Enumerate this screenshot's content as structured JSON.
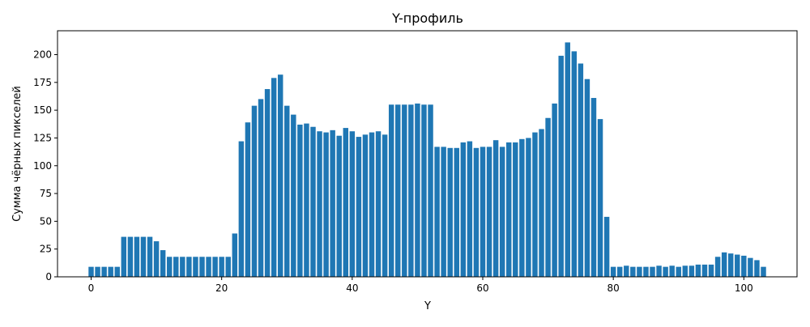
{
  "chart_data": {
    "type": "bar",
    "title": "Y-профиль",
    "xlabel": "Y",
    "ylabel": "Сумма чёрных пикселей",
    "xlim": [
      -5.15,
      108.15
    ],
    "ylim": [
      0,
      221.5
    ],
    "xticks": [
      0,
      20,
      40,
      60,
      80,
      100
    ],
    "yticks": [
      0,
      25,
      50,
      75,
      100,
      125,
      150,
      175,
      200
    ],
    "bar_color": "#1f77b4",
    "grid": false,
    "x": [
      0,
      1,
      2,
      3,
      4,
      5,
      6,
      7,
      8,
      9,
      10,
      11,
      12,
      13,
      14,
      15,
      16,
      17,
      18,
      19,
      20,
      21,
      22,
      23,
      24,
      25,
      26,
      27,
      28,
      29,
      30,
      31,
      32,
      33,
      34,
      35,
      36,
      37,
      38,
      39,
      40,
      41,
      42,
      43,
      44,
      45,
      46,
      47,
      48,
      49,
      50,
      51,
      52,
      53,
      54,
      55,
      56,
      57,
      58,
      59,
      60,
      61,
      62,
      63,
      64,
      65,
      66,
      67,
      68,
      69,
      70,
      71,
      72,
      73,
      74,
      75,
      76,
      77,
      78,
      79,
      80,
      81,
      82,
      83,
      84,
      85,
      86,
      87,
      88,
      89,
      90,
      91,
      92,
      93,
      94,
      95,
      96,
      97,
      98,
      99,
      100,
      101,
      102,
      103
    ],
    "values": [
      9,
      9,
      9,
      9,
      9,
      36,
      36,
      36,
      36,
      36,
      32,
      24,
      18,
      18,
      18,
      18,
      18,
      18,
      18,
      18,
      18,
      18,
      39,
      122,
      139,
      154,
      160,
      169,
      179,
      182,
      154,
      146,
      137,
      138,
      135,
      131,
      130,
      132,
      127,
      134,
      131,
      126,
      128,
      130,
      131,
      128,
      155,
      155,
      155,
      155,
      156,
      155,
      155,
      117,
      117,
      116,
      116,
      121,
      122,
      116,
      117,
      117,
      123,
      117,
      121,
      121,
      124,
      125,
      130,
      133,
      143,
      156,
      199,
      211,
      203,
      192,
      178,
      161,
      142,
      54,
      9,
      9,
      10,
      9,
      9,
      9,
      9,
      10,
      9,
      10,
      9,
      10,
      10,
      11,
      11,
      11,
      18,
      22,
      21,
      20,
      19,
      17,
      15,
      9
    ]
  }
}
